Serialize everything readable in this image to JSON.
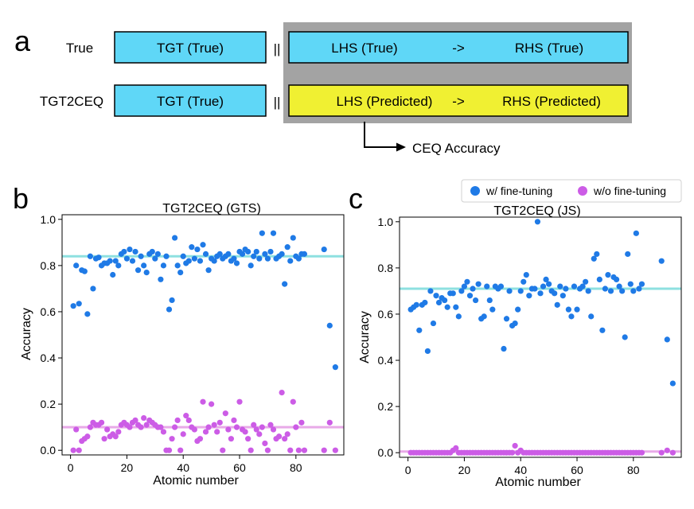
{
  "panels": {
    "a": {
      "letter": "a",
      "row1": {
        "label": "True",
        "tgt": "TGT (True)",
        "separator": "||",
        "lhs": "LHS (True)",
        "arrow": "->",
        "rhs": "RHS (True)"
      },
      "row2": {
        "label": "TGT2CEQ",
        "tgt": "TGT (True)",
        "separator": "||",
        "lhs": "LHS (Predicted)",
        "arrow": "->",
        "rhs": "RHS (Predicted)"
      },
      "ceq_label": "CEQ Accuracy"
    },
    "b_letter": "b",
    "c_letter": "c"
  },
  "legend": {
    "items": [
      "w/ fine-tuning",
      "w/o fine-tuning"
    ]
  },
  "colors": {
    "cyan_box": "#5fd7f7",
    "yellow_box": "#f0f032",
    "gray_bg": "#a3a3a3",
    "blue": "#1f7ae6",
    "magenta": "#cc5ce6",
    "blue_line": "#8ee0e0",
    "magenta_line": "#e8aae8"
  },
  "chart_data": [
    {
      "type": "scatter",
      "title": "TGT2CEQ (GTS)",
      "xlabel": "Atomic number",
      "ylabel": "Accuracy",
      "xlim": [
        -3,
        97
      ],
      "ylim": [
        -0.02,
        1.02
      ],
      "xticks": [
        0,
        20,
        40,
        60,
        80
      ],
      "yticks": [
        0.0,
        0.2,
        0.4,
        0.6,
        0.8,
        1.0
      ],
      "ytick_labels": [
        "0.0",
        "0.2",
        "0.4",
        "0.6",
        "0.8",
        "1.0"
      ],
      "mean_lines": [
        {
          "series": "w/ fine-tuning",
          "value": 0.84
        },
        {
          "series": "w/o fine-tuning",
          "value": 0.1
        }
      ],
      "series": [
        {
          "name": "w/ fine-tuning",
          "x": [
            1,
            2,
            3,
            4,
            5,
            6,
            7,
            8,
            9,
            10,
            11,
            12,
            13,
            14,
            15,
            16,
            17,
            18,
            19,
            20,
            21,
            22,
            23,
            24,
            25,
            26,
            27,
            28,
            29,
            30,
            31,
            32,
            33,
            34,
            35,
            36,
            37,
            38,
            39,
            40,
            41,
            42,
            43,
            44,
            45,
            46,
            47,
            48,
            49,
            50,
            51,
            52,
            53,
            54,
            55,
            56,
            57,
            58,
            59,
            60,
            61,
            62,
            63,
            64,
            65,
            66,
            67,
            68,
            69,
            70,
            71,
            72,
            73,
            74,
            75,
            76,
            77,
            78,
            79,
            80,
            81,
            82,
            83,
            90,
            92,
            94
          ],
          "y": [
            0.625,
            0.8,
            0.635,
            0.78,
            0.775,
            0.59,
            0.84,
            0.7,
            0.83,
            0.835,
            0.8,
            0.81,
            0.81,
            0.82,
            0.76,
            0.82,
            0.8,
            0.85,
            0.86,
            0.83,
            0.87,
            0.82,
            0.86,
            0.78,
            0.84,
            0.8,
            0.77,
            0.85,
            0.86,
            0.83,
            0.85,
            0.74,
            0.8,
            0.84,
            0.61,
            0.65,
            0.92,
            0.8,
            0.77,
            0.84,
            0.81,
            0.82,
            0.88,
            0.83,
            0.87,
            0.82,
            0.89,
            0.85,
            0.78,
            0.83,
            0.82,
            0.84,
            0.85,
            0.83,
            0.84,
            0.85,
            0.82,
            0.83,
            0.81,
            0.86,
            0.85,
            0.87,
            0.86,
            0.8,
            0.84,
            0.86,
            0.83,
            0.94,
            0.85,
            0.83,
            0.86,
            0.94,
            0.83,
            0.84,
            0.85,
            0.72,
            0.88,
            0.82,
            0.92,
            0.84,
            0.83,
            0.85,
            0.85,
            0.87,
            0.54,
            0.36
          ]
        },
        {
          "name": "w/o fine-tuning",
          "x": [
            1,
            2,
            3,
            4,
            5,
            6,
            7,
            8,
            9,
            10,
            11,
            12,
            13,
            14,
            15,
            16,
            17,
            18,
            19,
            20,
            21,
            22,
            23,
            24,
            25,
            26,
            27,
            28,
            29,
            30,
            31,
            32,
            33,
            34,
            35,
            36,
            37,
            38,
            39,
            40,
            41,
            42,
            43,
            44,
            45,
            46,
            47,
            48,
            49,
            50,
            51,
            52,
            53,
            54,
            55,
            56,
            57,
            58,
            59,
            60,
            61,
            62,
            63,
            64,
            65,
            66,
            67,
            68,
            69,
            70,
            71,
            72,
            73,
            74,
            75,
            76,
            77,
            78,
            79,
            80,
            81,
            82,
            83,
            90,
            92,
            94
          ],
          "y": [
            0.0,
            0.09,
            0.0,
            0.04,
            0.05,
            0.06,
            0.1,
            0.12,
            0.11,
            0.11,
            0.12,
            0.05,
            0.09,
            0.06,
            0.07,
            0.06,
            0.08,
            0.11,
            0.12,
            0.11,
            0.1,
            0.12,
            0.13,
            0.11,
            0.1,
            0.14,
            0.11,
            0.13,
            0.12,
            0.11,
            0.1,
            0.1,
            0.08,
            0.0,
            0.0,
            0.05,
            0.1,
            0.13,
            0.0,
            0.07,
            0.15,
            0.13,
            0.1,
            0.09,
            0.04,
            0.05,
            0.21,
            0.08,
            0.1,
            0.2,
            0.11,
            0.08,
            0.12,
            0.0,
            0.16,
            0.09,
            0.05,
            0.13,
            0.1,
            0.21,
            0.09,
            0.08,
            0.05,
            0.0,
            0.11,
            0.09,
            0.07,
            0.1,
            0.03,
            0.0,
            0.11,
            0.09,
            0.05,
            0.06,
            0.25,
            0.05,
            0.07,
            0.0,
            0.21,
            0.1,
            0.0,
            0.12,
            0.0,
            0.0,
            0.12,
            0.0
          ]
        }
      ]
    },
    {
      "type": "scatter",
      "title": "TGT2CEQ (JS)",
      "xlabel": "Atomic number",
      "ylabel": "Accuracy",
      "xlim": [
        -3,
        97
      ],
      "ylim": [
        -0.02,
        1.02
      ],
      "xticks": [
        0,
        20,
        40,
        60,
        80
      ],
      "yticks": [
        0.0,
        0.2,
        0.4,
        0.6,
        0.8,
        1.0
      ],
      "ytick_labels": [
        "0.0",
        "0.2",
        "0.4",
        "0.6",
        "0.8",
        "1.0"
      ],
      "mean_lines": [
        {
          "series": "w/ fine-tuning",
          "value": 0.71
        },
        {
          "series": "w/o fine-tuning",
          "value": 0.005
        }
      ],
      "series": [
        {
          "name": "w/ fine-tuning",
          "x": [
            1,
            2,
            3,
            4,
            5,
            6,
            7,
            8,
            9,
            10,
            11,
            12,
            13,
            14,
            15,
            16,
            17,
            18,
            19,
            20,
            21,
            22,
            23,
            24,
            25,
            26,
            27,
            28,
            29,
            30,
            31,
            32,
            33,
            34,
            35,
            36,
            37,
            38,
            39,
            40,
            41,
            42,
            43,
            44,
            45,
            46,
            47,
            48,
            49,
            50,
            51,
            52,
            53,
            54,
            55,
            56,
            57,
            58,
            59,
            60,
            61,
            62,
            63,
            64,
            65,
            66,
            67,
            68,
            69,
            70,
            71,
            72,
            73,
            74,
            75,
            76,
            77,
            78,
            79,
            80,
            81,
            82,
            83,
            90,
            92,
            94
          ],
          "y": [
            0.62,
            0.63,
            0.64,
            0.53,
            0.64,
            0.65,
            0.44,
            0.7,
            0.56,
            0.68,
            0.65,
            0.67,
            0.66,
            0.63,
            0.69,
            0.69,
            0.63,
            0.59,
            0.7,
            0.72,
            0.74,
            0.68,
            0.71,
            0.66,
            0.73,
            0.58,
            0.59,
            0.72,
            0.66,
            0.62,
            0.72,
            0.71,
            0.72,
            0.45,
            0.58,
            0.7,
            0.55,
            0.56,
            0.62,
            0.7,
            0.74,
            0.77,
            0.68,
            0.71,
            0.71,
            1.0,
            0.69,
            0.72,
            0.75,
            0.73,
            0.7,
            0.69,
            0.64,
            0.72,
            0.68,
            0.71,
            0.62,
            0.59,
            0.72,
            0.62,
            0.71,
            0.72,
            0.74,
            0.7,
            0.59,
            0.84,
            0.86,
            0.75,
            0.53,
            0.71,
            0.77,
            0.7,
            0.76,
            0.75,
            0.72,
            0.7,
            0.5,
            0.86,
            0.73,
            0.7,
            0.95,
            0.71,
            0.73,
            0.83,
            0.49,
            0.3
          ]
        },
        {
          "name": "w/o fine-tuning",
          "x": [
            1,
            2,
            3,
            4,
            5,
            6,
            7,
            8,
            9,
            10,
            11,
            12,
            13,
            14,
            15,
            16,
            17,
            18,
            19,
            20,
            21,
            22,
            23,
            24,
            25,
            26,
            27,
            28,
            29,
            30,
            31,
            32,
            33,
            34,
            35,
            36,
            37,
            38,
            39,
            40,
            41,
            42,
            43,
            44,
            45,
            46,
            47,
            48,
            49,
            50,
            51,
            52,
            53,
            54,
            55,
            56,
            57,
            58,
            59,
            60,
            61,
            62,
            63,
            64,
            65,
            66,
            67,
            68,
            69,
            70,
            71,
            72,
            73,
            74,
            75,
            76,
            77,
            78,
            79,
            80,
            81,
            82,
            83,
            90,
            92,
            94
          ],
          "y": [
            0.0,
            0.0,
            0.0,
            0.0,
            0.0,
            0.0,
            0.0,
            0.0,
            0.0,
            0.0,
            0.0,
            0.0,
            0.0,
            0.0,
            0.0,
            0.01,
            0.02,
            0.0,
            0.0,
            0.0,
            0.0,
            0.0,
            0.0,
            0.0,
            0.0,
            0.0,
            0.0,
            0.0,
            0.0,
            0.0,
            0.0,
            0.0,
            0.0,
            0.0,
            0.0,
            0.0,
            0.0,
            0.03,
            0.0,
            0.01,
            0.0,
            0.0,
            0.0,
            0.0,
            0.0,
            0.0,
            0.0,
            0.0,
            0.0,
            0.0,
            0.0,
            0.0,
            0.0,
            0.0,
            0.0,
            0.0,
            0.0,
            0.0,
            0.0,
            0.0,
            0.0,
            0.0,
            0.0,
            0.0,
            0.0,
            0.0,
            0.0,
            0.0,
            0.0,
            0.0,
            0.0,
            0.0,
            0.0,
            0.0,
            0.0,
            0.0,
            0.0,
            0.0,
            0.0,
            0.0,
            0.0,
            0.0,
            0.0,
            0.0,
            0.01,
            0.0
          ]
        }
      ]
    }
  ]
}
